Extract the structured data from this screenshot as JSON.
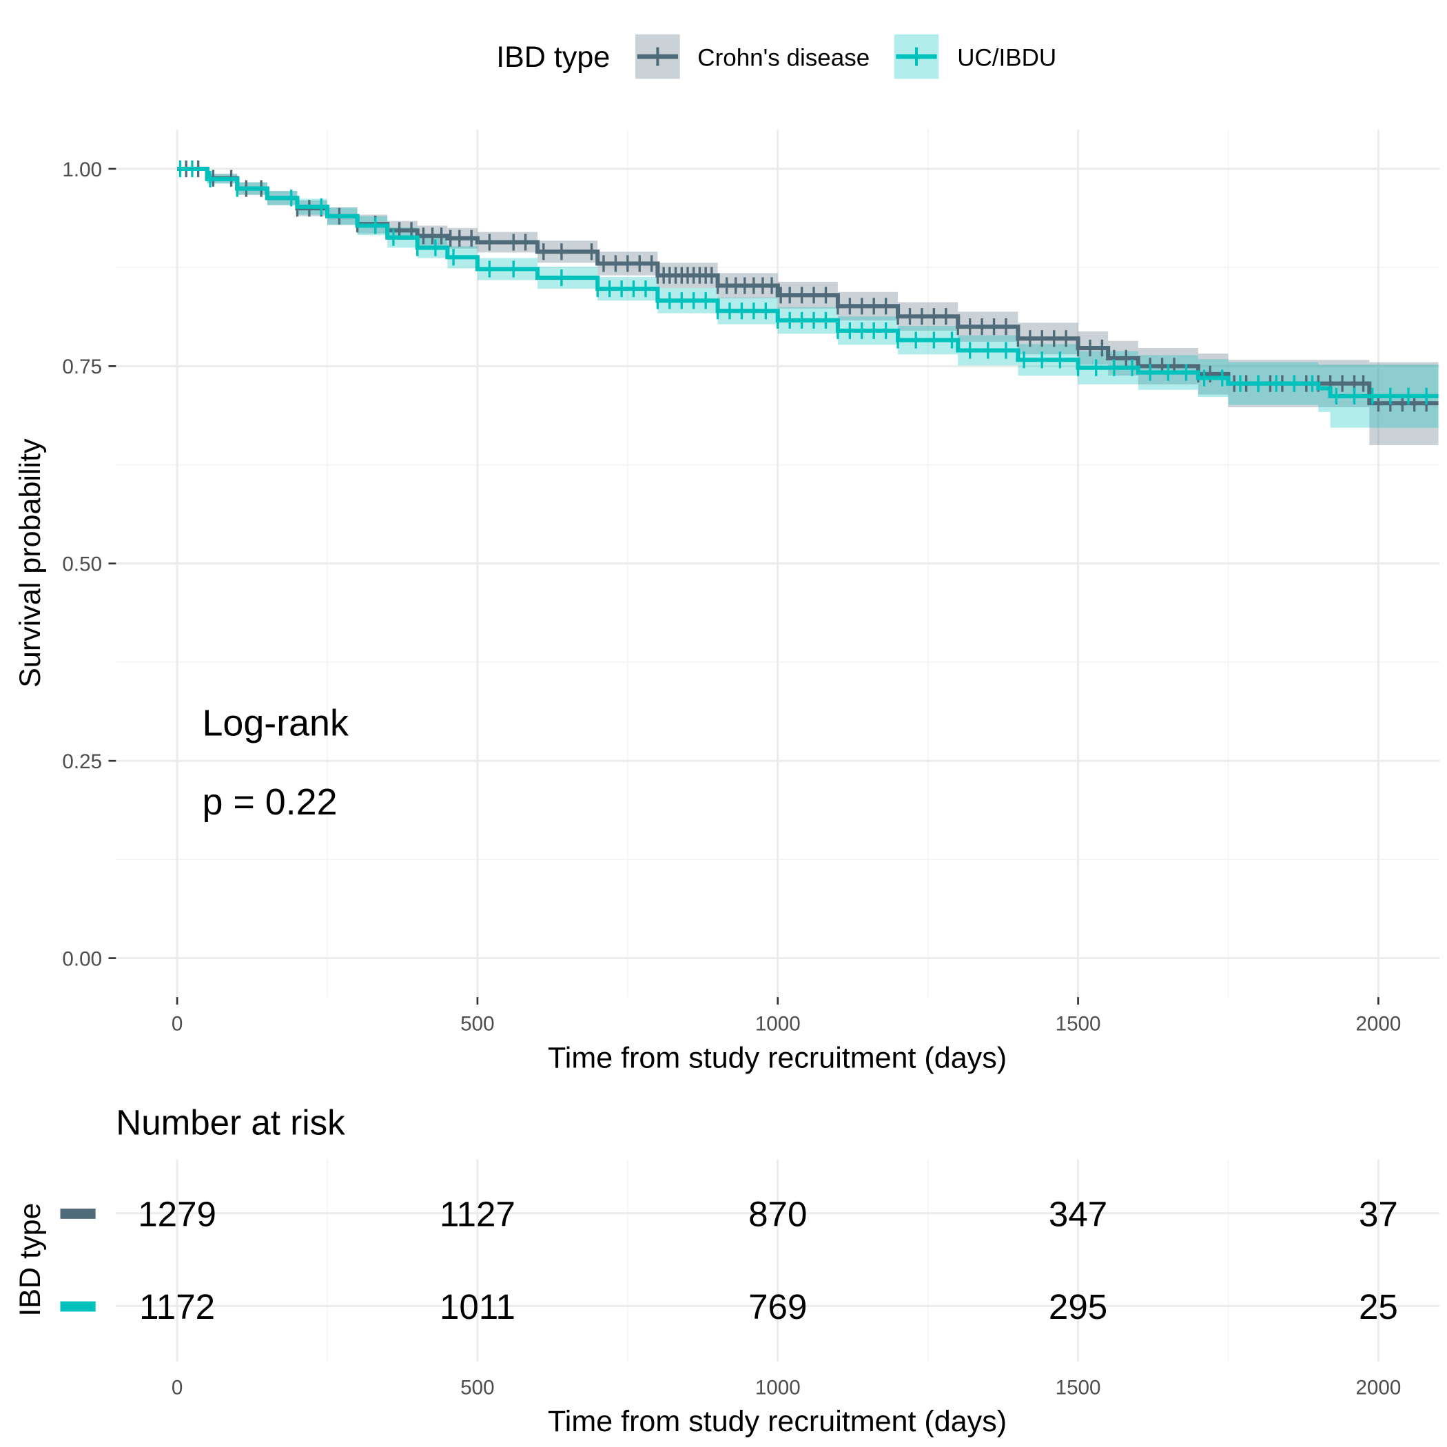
{
  "legend": {
    "title": "IBD type",
    "items": [
      {
        "label": "Crohn's disease",
        "color": "#4F6B7A"
      },
      {
        "label": "UC/IBDU",
        "color": "#00C2BC"
      }
    ]
  },
  "chart_data": {
    "type": "line",
    "subtype": "kaplan-meier step curve with confidence bands and censor marks",
    "xlabel": "Time from study recruitment (days)",
    "ylabel": "Survival probability",
    "xlim": [
      -100,
      2100
    ],
    "ylim": [
      -0.05,
      1.05
    ],
    "xticks": [
      0,
      500,
      1000,
      1500,
      2000
    ],
    "xtick_labels": [
      "0",
      "500",
      "1000",
      "1500",
      "2000"
    ],
    "yticks": [
      0,
      0.25,
      0.5,
      0.75,
      1
    ],
    "ytick_labels": [
      "0.00",
      "0.25",
      "0.50",
      "0.75",
      "1.00"
    ],
    "grid": true,
    "legend_position": "top",
    "annotation": {
      "line1": "Log-rank",
      "line2": "p = 0.22"
    },
    "series": [
      {
        "name": "Crohn's disease",
        "color": "#4F6B7A",
        "time": [
          0,
          50,
          100,
          150,
          200,
          250,
          300,
          350,
          400,
          450,
          500,
          600,
          700,
          800,
          900,
          1000,
          1100,
          1200,
          1300,
          1400,
          1500,
          1550,
          1600,
          1700,
          1750,
          1980,
          1985,
          2100
        ],
        "surv": [
          1,
          0.988,
          0.975,
          0.963,
          0.95,
          0.94,
          0.93,
          0.922,
          0.915,
          0.912,
          0.907,
          0.895,
          0.88,
          0.865,
          0.852,
          0.84,
          0.826,
          0.813,
          0.8,
          0.785,
          0.773,
          0.76,
          0.75,
          0.74,
          0.728,
          0.728,
          0.703,
          0.703
        ],
        "upper": [
          1,
          0.994,
          0.983,
          0.972,
          0.96,
          0.951,
          0.942,
          0.934,
          0.928,
          0.925,
          0.92,
          0.909,
          0.895,
          0.881,
          0.868,
          0.857,
          0.844,
          0.831,
          0.819,
          0.805,
          0.794,
          0.782,
          0.773,
          0.766,
          0.758,
          0.758,
          0.755,
          0.755
        ],
        "lower": [
          1,
          0.982,
          0.967,
          0.954,
          0.94,
          0.929,
          0.918,
          0.91,
          0.902,
          0.899,
          0.894,
          0.881,
          0.865,
          0.849,
          0.836,
          0.823,
          0.808,
          0.795,
          0.781,
          0.765,
          0.752,
          0.738,
          0.727,
          0.714,
          0.698,
          0.698,
          0.65,
          0.65
        ],
        "censor_times": [
          15,
          35,
          60,
          90,
          115,
          140,
          200,
          220,
          240,
          270,
          300,
          330,
          370,
          390,
          410,
          425,
          440,
          455,
          470,
          490,
          520,
          560,
          580,
          610,
          640,
          690,
          710,
          730,
          750,
          770,
          790,
          800,
          810,
          820,
          830,
          840,
          850,
          860,
          870,
          880,
          890,
          900,
          915,
          930,
          945,
          960,
          975,
          990,
          1005,
          1020,
          1040,
          1060,
          1080,
          1100,
          1120,
          1140,
          1160,
          1180,
          1200,
          1220,
          1240,
          1260,
          1280,
          1300,
          1320,
          1340,
          1360,
          1380,
          1400,
          1420,
          1440,
          1460,
          1480,
          1500,
          1520,
          1540,
          1560,
          1580,
          1600,
          1620,
          1640,
          1660,
          1700,
          1720,
          1760,
          1780,
          1800,
          1820,
          1840,
          1860,
          1880,
          1900,
          1920,
          1940,
          1960,
          1975,
          2000,
          2020,
          2040,
          2060,
          2080
        ]
      },
      {
        "name": "UC/IBDU",
        "color": "#00C2BC",
        "time": [
          0,
          50,
          100,
          150,
          200,
          250,
          300,
          350,
          400,
          450,
          500,
          600,
          700,
          800,
          900,
          1000,
          1100,
          1200,
          1300,
          1400,
          1500,
          1600,
          1700,
          1750,
          1900,
          1920,
          2100
        ],
        "surv": [
          1,
          0.987,
          0.975,
          0.963,
          0.952,
          0.94,
          0.928,
          0.913,
          0.9,
          0.888,
          0.873,
          0.862,
          0.848,
          0.833,
          0.82,
          0.808,
          0.795,
          0.783,
          0.77,
          0.758,
          0.748,
          0.742,
          0.735,
          0.728,
          0.722,
          0.712,
          0.712
        ],
        "upper": [
          1,
          0.993,
          0.983,
          0.972,
          0.962,
          0.951,
          0.94,
          0.926,
          0.913,
          0.902,
          0.887,
          0.876,
          0.863,
          0.849,
          0.837,
          0.825,
          0.813,
          0.801,
          0.789,
          0.778,
          0.769,
          0.764,
          0.759,
          0.755,
          0.752,
          0.752,
          0.752
        ],
        "lower": [
          1,
          0.981,
          0.967,
          0.954,
          0.942,
          0.929,
          0.916,
          0.9,
          0.887,
          0.874,
          0.859,
          0.848,
          0.833,
          0.817,
          0.803,
          0.791,
          0.777,
          0.765,
          0.751,
          0.738,
          0.727,
          0.72,
          0.711,
          0.701,
          0.692,
          0.672,
          0.672
        ],
        "censor_times": [
          5,
          25,
          55,
          100,
          190,
          240,
          330,
          360,
          400,
          430,
          460,
          520,
          560,
          640,
          700,
          720,
          740,
          760,
          780,
          800,
          820,
          840,
          860,
          880,
          900,
          920,
          940,
          960,
          980,
          1000,
          1020,
          1040,
          1060,
          1080,
          1100,
          1120,
          1140,
          1160,
          1180,
          1200,
          1230,
          1260,
          1290,
          1320,
          1350,
          1380,
          1410,
          1440,
          1470,
          1500,
          1530,
          1560,
          1590,
          1620,
          1650,
          1680,
          1710,
          1740,
          1770,
          1800,
          1830,
          1860,
          1890,
          1930,
          1960,
          1990,
          2020,
          2050,
          2080
        ]
      }
    ]
  },
  "risk_table": {
    "title": "Number at risk",
    "ylabel": "IBD type",
    "xlabel": "Time from study recruitment (days)",
    "times": [
      0,
      500,
      1000,
      1500,
      2000
    ],
    "time_labels": [
      "0",
      "500",
      "1000",
      "1500",
      "2000"
    ],
    "rows": [
      {
        "name": "Crohn's disease",
        "color": "#4F6B7A",
        "values": [
          "1279",
          "1127",
          "870",
          "347",
          "37"
        ]
      },
      {
        "name": "UC/IBDU",
        "color": "#00C2BC",
        "values": [
          "1172",
          "1011",
          "769",
          "295",
          "25"
        ]
      }
    ]
  }
}
